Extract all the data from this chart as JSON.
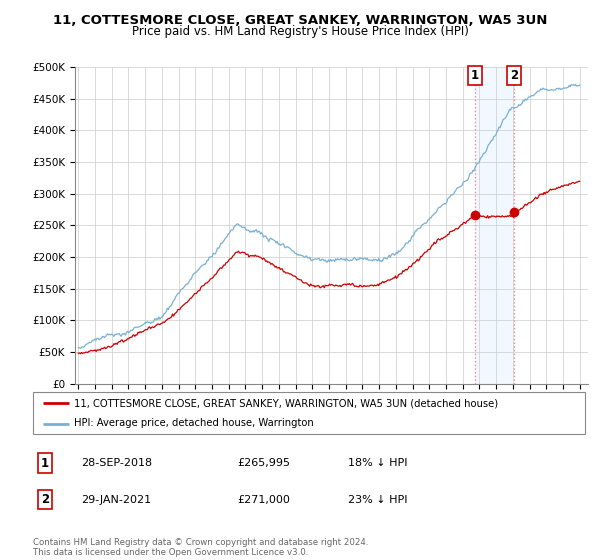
{
  "title": "11, COTTESMORE CLOSE, GREAT SANKEY, WARRINGTON, WA5 3UN",
  "subtitle": "Price paid vs. HM Land Registry's House Price Index (HPI)",
  "legend_line1": "11, COTTESMORE CLOSE, GREAT SANKEY, WARRINGTON, WA5 3UN (detached house)",
  "legend_line2": "HPI: Average price, detached house, Warrington",
  "transaction1_date": "28-SEP-2018",
  "transaction1_price": "£265,995",
  "transaction1_hpi": "18% ↓ HPI",
  "transaction2_date": "29-JAN-2021",
  "transaction2_price": "£271,000",
  "transaction2_hpi": "23% ↓ HPI",
  "footer": "Contains HM Land Registry data © Crown copyright and database right 2024.\nThis data is licensed under the Open Government Licence v3.0.",
  "transaction1_x": 2018.74,
  "transaction2_x": 2021.08,
  "transaction1_y": 265995,
  "transaction2_y": 271000,
  "ylim": [
    0,
    500000
  ],
  "xlim": [
    1994.8,
    2025.5
  ],
  "red_color": "#cc0000",
  "blue_color": "#7ab0d4",
  "vline_color": "#e89090",
  "marker_box_color": "#cc0000",
  "span_color": "#ddeeff",
  "grid_color": "#cccccc",
  "bg_color": "#ffffff"
}
